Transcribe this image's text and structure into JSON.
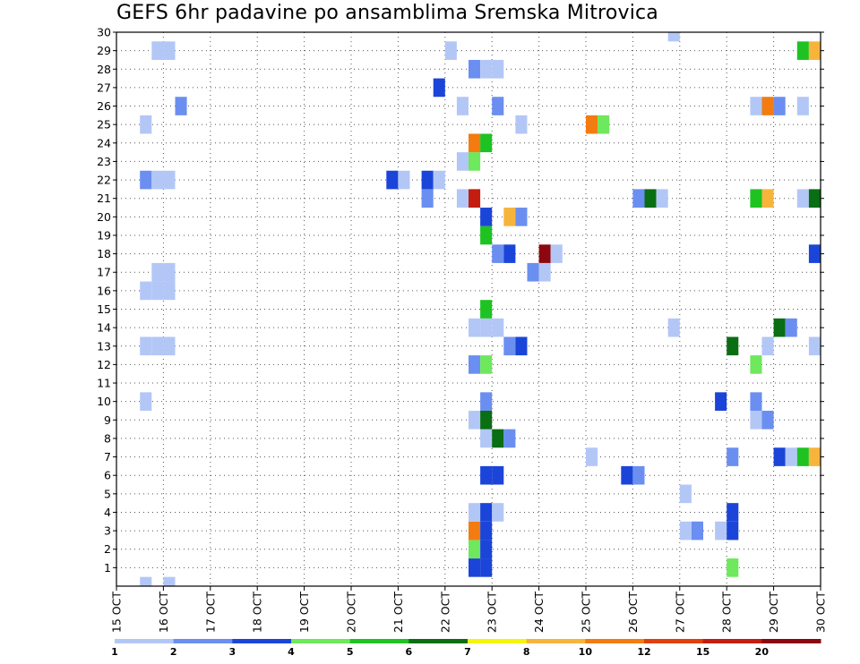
{
  "chart_data": {
    "type": "heatmap",
    "title": "GEFS 6hr padavine po ansamblima Sremska Mitrovica",
    "xlabel": "",
    "ylabel": "",
    "x_tick_labels": [
      "15 OCT",
      "16 OCT",
      "17 OCT",
      "18 OCT",
      "19 OCT",
      "20 OCT",
      "21 OCT",
      "22 OCT",
      "23 OCT",
      "24 OCT",
      "25 OCT",
      "26 OCT",
      "27 OCT",
      "28 OCT",
      "29 OCT",
      "30 OCT"
    ],
    "x_range_days": [
      15,
      30
    ],
    "y_tick_labels": [
      "1",
      "2",
      "3",
      "4",
      "5",
      "6",
      "7",
      "8",
      "9",
      "10",
      "11",
      "12",
      "13",
      "14",
      "15",
      "16",
      "17",
      "18",
      "19",
      "20",
      "21",
      "22",
      "23",
      "24",
      "25",
      "26",
      "27",
      "28",
      "29",
      "30"
    ],
    "y_range": [
      0,
      30
    ],
    "grid": true,
    "grid_style": "dotted",
    "colorbar_levels": [
      "1",
      "2",
      "3",
      "4",
      "5",
      "6",
      "7",
      "8",
      "10",
      "12",
      "15",
      "20"
    ],
    "colors": {
      "c1": "#b3c7f7",
      "c2": "#6b8ff0",
      "c3": "#1b45d8",
      "c4": "#6ee85c",
      "c5": "#1ec322",
      "c6": "#0a6e14",
      "c7": "#f5f50a",
      "c8": "#f7b43c",
      "c10": "#f27c10",
      "c12": "#e0400c",
      "c15": "#c41c10",
      "c20": "#8c0810"
    },
    "cells_note": "Each cell is [day_value, member, color_class]; day_value is the start of a 6-hour period in days of October.",
    "cells": [
      [
        15.5,
        0,
        "c1"
      ],
      [
        16.0,
        0,
        "c1"
      ],
      [
        22.5,
        1,
        "c3"
      ],
      [
        22.75,
        1,
        "c3"
      ],
      [
        28.0,
        1,
        "c4"
      ],
      [
        22.5,
        2,
        "c4"
      ],
      [
        22.75,
        2,
        "c3"
      ],
      [
        22.5,
        3,
        "c10"
      ],
      [
        22.75,
        3,
        "c3"
      ],
      [
        27.0,
        3,
        "c1"
      ],
      [
        27.25,
        3,
        "c2"
      ],
      [
        27.75,
        3,
        "c1"
      ],
      [
        28.0,
        3,
        "c3"
      ],
      [
        22.5,
        4,
        "c1"
      ],
      [
        22.75,
        4,
        "c3"
      ],
      [
        23.0,
        4,
        "c1"
      ],
      [
        28.0,
        4,
        "c3"
      ],
      [
        27.0,
        5,
        "c1"
      ],
      [
        22.75,
        6,
        "c3"
      ],
      [
        23.0,
        6,
        "c3"
      ],
      [
        25.75,
        6,
        "c3"
      ],
      [
        26.0,
        6,
        "c2"
      ],
      [
        25.0,
        7,
        "c1"
      ],
      [
        28.0,
        7,
        "c2"
      ],
      [
        29.0,
        7,
        "c3"
      ],
      [
        29.25,
        7,
        "c1"
      ],
      [
        29.5,
        7,
        "c5"
      ],
      [
        29.75,
        7,
        "c8"
      ],
      [
        22.75,
        8,
        "c1"
      ],
      [
        23.0,
        8,
        "c6"
      ],
      [
        23.25,
        8,
        "c2"
      ],
      [
        22.5,
        9,
        "c1"
      ],
      [
        22.75,
        9,
        "c6"
      ],
      [
        28.5,
        9,
        "c1"
      ],
      [
        28.75,
        9,
        "c2"
      ],
      [
        15.5,
        10,
        "c1"
      ],
      [
        22.75,
        10,
        "c2"
      ],
      [
        27.75,
        10,
        "c3"
      ],
      [
        28.5,
        10,
        "c2"
      ],
      [
        22.5,
        12,
        "c2"
      ],
      [
        22.75,
        12,
        "c4"
      ],
      [
        28.5,
        12,
        "c4"
      ],
      [
        15.5,
        13,
        "c1"
      ],
      [
        15.75,
        13,
        "c1"
      ],
      [
        16.0,
        13,
        "c1"
      ],
      [
        23.25,
        13,
        "c2"
      ],
      [
        23.5,
        13,
        "c3"
      ],
      [
        28.0,
        13,
        "c6"
      ],
      [
        28.75,
        13,
        "c1"
      ],
      [
        29.75,
        13,
        "c1"
      ],
      [
        22.5,
        14,
        "c1"
      ],
      [
        22.75,
        14,
        "c1"
      ],
      [
        23.0,
        14,
        "c1"
      ],
      [
        26.75,
        14,
        "c1"
      ],
      [
        29.0,
        14,
        "c6"
      ],
      [
        29.25,
        14,
        "c2"
      ],
      [
        22.75,
        15,
        "c5"
      ],
      [
        15.5,
        16,
        "c1"
      ],
      [
        15.75,
        16,
        "c1"
      ],
      [
        16.0,
        16,
        "c1"
      ],
      [
        15.75,
        17,
        "c1"
      ],
      [
        16.0,
        17,
        "c1"
      ],
      [
        23.75,
        17,
        "c2"
      ],
      [
        24.0,
        17,
        "c1"
      ],
      [
        23.0,
        18,
        "c2"
      ],
      [
        23.25,
        18,
        "c3"
      ],
      [
        24.0,
        18,
        "c20"
      ],
      [
        24.25,
        18,
        "c1"
      ],
      [
        29.75,
        18,
        "c3"
      ],
      [
        22.75,
        19,
        "c5"
      ],
      [
        22.75,
        20,
        "c3"
      ],
      [
        23.25,
        20,
        "c8"
      ],
      [
        23.5,
        20,
        "c2"
      ],
      [
        22.5,
        21,
        "c15"
      ],
      [
        22.25,
        21,
        "c1"
      ],
      [
        21.5,
        21,
        "c2"
      ],
      [
        26.0,
        21,
        "c2"
      ],
      [
        26.25,
        21,
        "c6"
      ],
      [
        26.5,
        21,
        "c1"
      ],
      [
        28.5,
        21,
        "c5"
      ],
      [
        28.75,
        21,
        "c8"
      ],
      [
        29.5,
        21,
        "c1"
      ],
      [
        29.75,
        21,
        "c6"
      ],
      [
        15.5,
        22,
        "c2"
      ],
      [
        15.75,
        22,
        "c1"
      ],
      [
        16.0,
        22,
        "c1"
      ],
      [
        20.75,
        22,
        "c3"
      ],
      [
        21.0,
        22,
        "c1"
      ],
      [
        21.5,
        22,
        "c3"
      ],
      [
        21.75,
        22,
        "c1"
      ],
      [
        22.25,
        23,
        "c1"
      ],
      [
        22.5,
        23,
        "c4"
      ],
      [
        22.5,
        24,
        "c10"
      ],
      [
        22.75,
        24,
        "c5"
      ],
      [
        15.5,
        25,
        "c1"
      ],
      [
        23.5,
        25,
        "c1"
      ],
      [
        25.0,
        25,
        "c10"
      ],
      [
        25.25,
        25,
        "c4"
      ],
      [
        16.25,
        26,
        "c2"
      ],
      [
        22.25,
        26,
        "c1"
      ],
      [
        23.0,
        26,
        "c2"
      ],
      [
        28.5,
        26,
        "c1"
      ],
      [
        28.75,
        26,
        "c10"
      ],
      [
        29.0,
        26,
        "c2"
      ],
      [
        29.5,
        26,
        "c1"
      ],
      [
        21.75,
        27,
        "c3"
      ],
      [
        22.5,
        28,
        "c2"
      ],
      [
        22.75,
        28,
        "c1"
      ],
      [
        23.0,
        28,
        "c1"
      ],
      [
        15.75,
        29,
        "c1"
      ],
      [
        16.0,
        29,
        "c1"
      ],
      [
        22.0,
        29,
        "c1"
      ],
      [
        29.5,
        29,
        "c5"
      ],
      [
        29.75,
        29,
        "c8"
      ],
      [
        26.75,
        30,
        "c1"
      ]
    ]
  }
}
